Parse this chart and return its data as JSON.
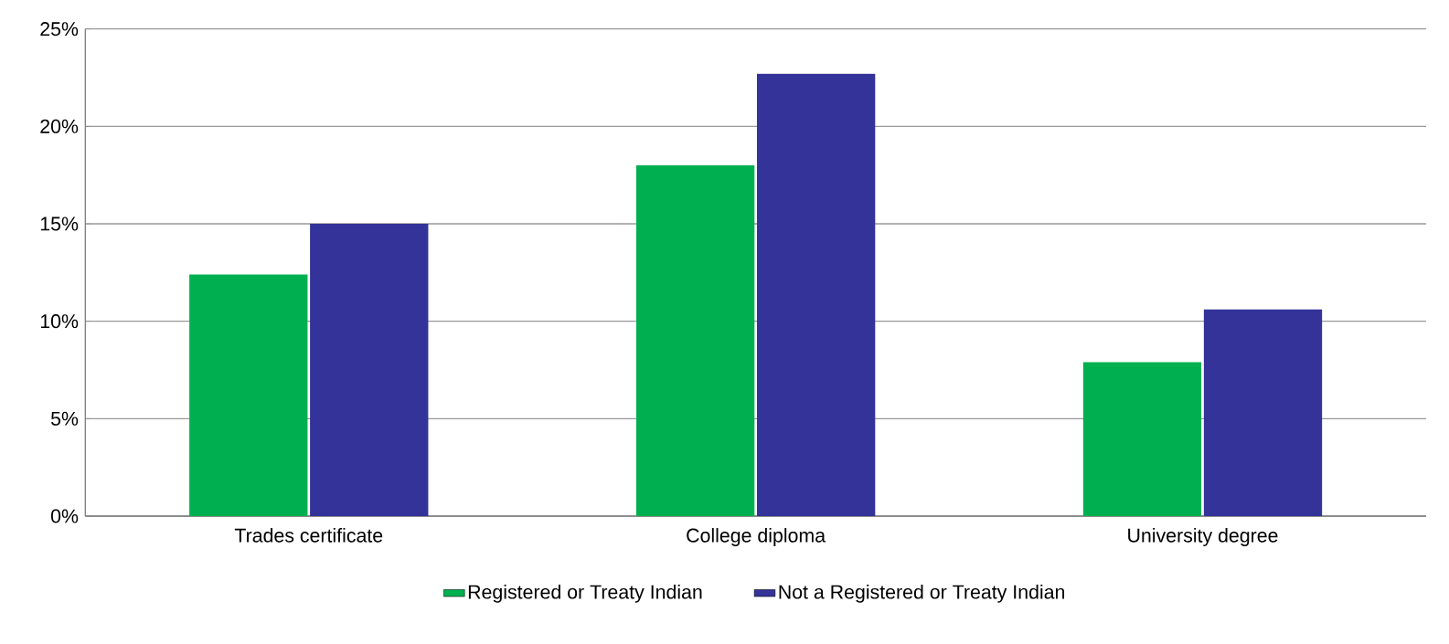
{
  "chart_data": {
    "type": "bar",
    "categories": [
      "Trades certificate",
      "College diploma",
      "University degree"
    ],
    "series": [
      {
        "name": "Registered or Treaty Indian",
        "color": "#00b050",
        "values": [
          12.4,
          18.0,
          7.9
        ]
      },
      {
        "name": "Not a Registered or Treaty Indian",
        "color": "#333399",
        "values": [
          15.0,
          22.7,
          10.6
        ]
      }
    ],
    "ylim": [
      0,
      25
    ],
    "yticks": [
      {
        "value": 0,
        "label": "0%"
      },
      {
        "value": 5,
        "label": "5%"
      },
      {
        "value": 10,
        "label": "10%"
      },
      {
        "value": 15,
        "label": "15%"
      },
      {
        "value": 20,
        "label": "20%"
      },
      {
        "value": 25,
        "label": "25%"
      }
    ],
    "grid": "y",
    "legend": "bottom"
  }
}
